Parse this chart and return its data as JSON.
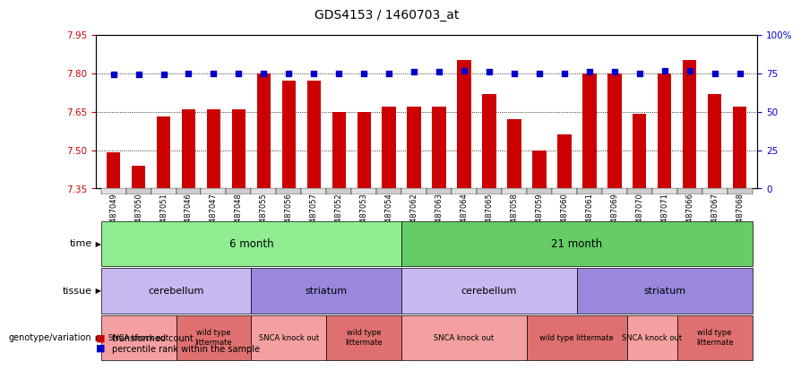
{
  "title": "GDS4153 / 1460703_at",
  "samples": [
    "GSM487049",
    "GSM487050",
    "GSM487051",
    "GSM487046",
    "GSM487047",
    "GSM487048",
    "GSM487055",
    "GSM487056",
    "GSM487057",
    "GSM487052",
    "GSM487053",
    "GSM487054",
    "GSM487062",
    "GSM487063",
    "GSM487064",
    "GSM487065",
    "GSM487058",
    "GSM487059",
    "GSM487060",
    "GSM487061",
    "GSM487069",
    "GSM487070",
    "GSM487071",
    "GSM487066",
    "GSM487067",
    "GSM487068"
  ],
  "bar_values": [
    7.49,
    7.44,
    7.63,
    7.66,
    7.66,
    7.66,
    7.8,
    7.77,
    7.77,
    7.65,
    7.65,
    7.67,
    7.67,
    7.67,
    7.85,
    7.72,
    7.62,
    7.5,
    7.56,
    7.8,
    7.8,
    7.64,
    7.8,
    7.85,
    7.72,
    7.67
  ],
  "dot_values": [
    7.795,
    7.795,
    7.795,
    7.8,
    7.8,
    7.8,
    7.8,
    7.8,
    7.8,
    7.8,
    7.8,
    7.8,
    7.805,
    7.805,
    7.81,
    7.805,
    7.8,
    7.8,
    7.8,
    7.805,
    7.805,
    7.8,
    7.81,
    7.81,
    7.8,
    7.8
  ],
  "ylim_left": [
    7.35,
    7.95
  ],
  "ylim_right": [
    0,
    100
  ],
  "yticks_left": [
    7.35,
    7.5,
    7.65,
    7.8,
    7.95
  ],
  "yticks_right": [
    0,
    25,
    50,
    75,
    100
  ],
  "bar_color": "#cc0000",
  "dot_color": "#0000cc",
  "bar_bottom": 7.35,
  "time_row": [
    {
      "label": "6 month",
      "start": 0,
      "end": 12,
      "color": "#90ee90"
    },
    {
      "label": "21 month",
      "start": 12,
      "end": 26,
      "color": "#66cc66"
    }
  ],
  "tissue_row": [
    {
      "label": "cerebellum",
      "start": 0,
      "end": 6,
      "color": "#c8b8f0"
    },
    {
      "label": "striatum",
      "start": 6,
      "end": 12,
      "color": "#9988dd"
    },
    {
      "label": "cerebellum",
      "start": 12,
      "end": 19,
      "color": "#c8b8f0"
    },
    {
      "label": "striatum",
      "start": 19,
      "end": 26,
      "color": "#9988dd"
    }
  ],
  "genotype_row": [
    {
      "label": "SNCA knock out",
      "start": 0,
      "end": 3,
      "color": "#f4a0a0"
    },
    {
      "label": "wild type\nlittermate",
      "start": 3,
      "end": 6,
      "color": "#e07070"
    },
    {
      "label": "SNCA knock out",
      "start": 6,
      "end": 9,
      "color": "#f4a0a0"
    },
    {
      "label": "wild type\nlittermate",
      "start": 9,
      "end": 12,
      "color": "#e07070"
    },
    {
      "label": "SNCA knock out",
      "start": 12,
      "end": 17,
      "color": "#f4a0a0"
    },
    {
      "label": "wild type littermate",
      "start": 17,
      "end": 21,
      "color": "#e07070"
    },
    {
      "label": "SNCA knock out",
      "start": 21,
      "end": 23,
      "color": "#f4a0a0"
    },
    {
      "label": "wild type\nlittermate",
      "start": 23,
      "end": 26,
      "color": "#e07070"
    }
  ],
  "legend_bar_label": "transformed count",
  "legend_dot_label": "percentile rank within the sample",
  "row_label_names": [
    "time",
    "tissue",
    "genotype/variation"
  ],
  "chart_facecolor": "#ffffff",
  "fig_facecolor": "#ffffff"
}
